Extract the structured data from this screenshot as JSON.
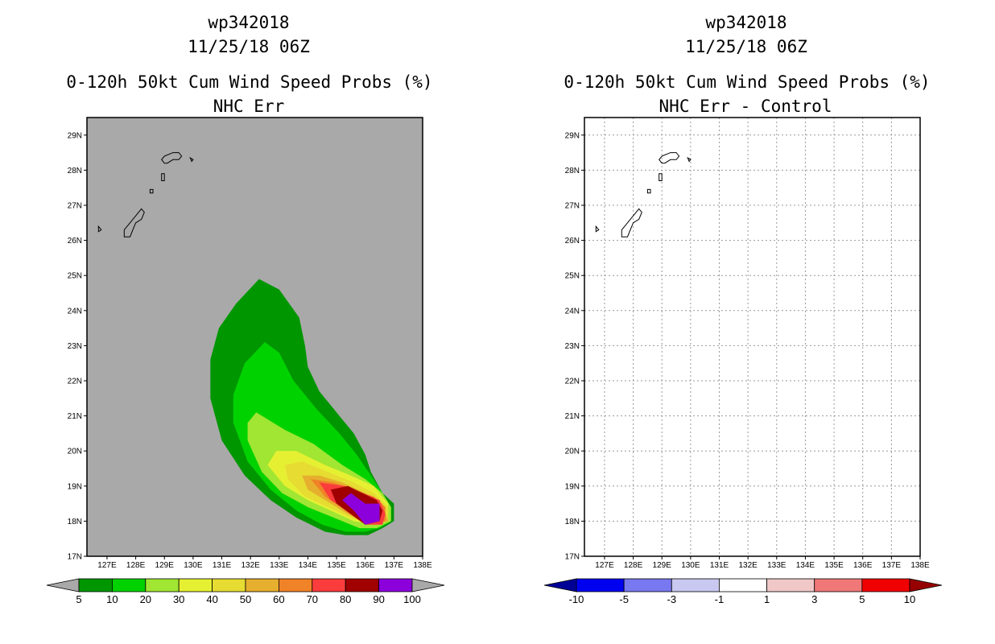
{
  "chart_data": [
    {
      "type": "contour-map",
      "storm_id": "wp342018",
      "datetime": "11/25/18 06Z",
      "title": "0-120h 50kt Cum Wind Speed Probs (%)",
      "subtitle": "NHC Err",
      "background_color": "#a9a9a9",
      "x_ticks": [
        "127E",
        "128E",
        "129E",
        "130E",
        "131E",
        "132E",
        "133E",
        "134E",
        "135E",
        "136E",
        "137E",
        "138E"
      ],
      "y_ticks": [
        "17N",
        "18N",
        "19N",
        "20N",
        "21N",
        "22N",
        "23N",
        "24N",
        "25N",
        "26N",
        "27N",
        "28N",
        "29N"
      ],
      "lon_range": [
        126.3,
        138
      ],
      "lat_range": [
        17,
        29.5
      ],
      "grid": false,
      "colorbar": {
        "labels": [
          "5",
          "10",
          "20",
          "30",
          "40",
          "50",
          "60",
          "70",
          "80",
          "90",
          "100"
        ],
        "colors": [
          "#009600",
          "#00d200",
          "#a0e632",
          "#e6f032",
          "#e6dc32",
          "#e6af2d",
          "#f08228",
          "#fa3c3c",
          "#a00000",
          "#8c00dc"
        ],
        "end_arrows": "both"
      },
      "contours": [
        {
          "level": 5,
          "color": "#009600",
          "points": [
            [
              132.3,
              24.9
            ],
            [
              133.0,
              24.6
            ],
            [
              133.7,
              23.8
            ],
            [
              133.9,
              23.0
            ],
            [
              134.0,
              22.4
            ],
            [
              134.4,
              21.7
            ],
            [
              135.1,
              21.0
            ],
            [
              135.6,
              20.5
            ],
            [
              136.0,
              19.9
            ],
            [
              136.2,
              19.4
            ],
            [
              136.6,
              18.8
            ],
            [
              137.0,
              18.5
            ],
            [
              137.0,
              18.0
            ],
            [
              136.6,
              17.8
            ],
            [
              136.1,
              17.6
            ],
            [
              135.3,
              17.6
            ],
            [
              134.6,
              17.7
            ],
            [
              133.6,
              18.1
            ],
            [
              132.7,
              18.6
            ],
            [
              131.8,
              19.3
            ],
            [
              131.0,
              20.3
            ],
            [
              130.6,
              21.5
            ],
            [
              130.6,
              22.6
            ],
            [
              130.9,
              23.5
            ],
            [
              131.5,
              24.2
            ]
          ]
        },
        {
          "level": 10,
          "color": "#00d200",
          "points": [
            [
              132.5,
              23.1
            ],
            [
              133.0,
              22.8
            ],
            [
              133.5,
              22.0
            ],
            [
              134.3,
              21.2
            ],
            [
              135.1,
              20.5
            ],
            [
              135.7,
              19.9
            ],
            [
              136.2,
              19.3
            ],
            [
              136.6,
              18.8
            ],
            [
              136.9,
              18.4
            ],
            [
              136.9,
              18.0
            ],
            [
              136.5,
              17.8
            ],
            [
              136.0,
              17.7
            ],
            [
              135.3,
              17.7
            ],
            [
              134.5,
              17.9
            ],
            [
              133.6,
              18.3
            ],
            [
              132.7,
              18.9
            ],
            [
              131.9,
              19.7
            ],
            [
              131.4,
              20.8
            ],
            [
              131.4,
              21.6
            ],
            [
              131.8,
              22.5
            ]
          ]
        },
        {
          "level": 20,
          "color": "#a0e632",
          "points": [
            [
              132.2,
              21.1
            ],
            [
              133.2,
              20.6
            ],
            [
              134.2,
              20.2
            ],
            [
              135.2,
              19.6
            ],
            [
              136.0,
              19.2
            ],
            [
              136.6,
              18.8
            ],
            [
              136.9,
              18.4
            ],
            [
              136.9,
              18.0
            ],
            [
              136.4,
              17.8
            ],
            [
              135.8,
              17.8
            ],
            [
              134.9,
              18.1
            ],
            [
              134.0,
              18.4
            ],
            [
              133.1,
              18.8
            ],
            [
              132.4,
              19.4
            ],
            [
              131.9,
              20.3
            ],
            [
              131.9,
              20.8
            ]
          ]
        },
        {
          "level": 30,
          "color": "#e6f032",
          "points": [
            [
              132.9,
              20.0
            ],
            [
              133.6,
              20.0
            ],
            [
              134.6,
              19.6
            ],
            [
              135.5,
              19.3
            ],
            [
              136.3,
              19.0
            ],
            [
              136.8,
              18.5
            ],
            [
              136.8,
              18.0
            ],
            [
              136.3,
              17.9
            ],
            [
              135.6,
              18.0
            ],
            [
              134.8,
              18.3
            ],
            [
              134.0,
              18.6
            ],
            [
              133.2,
              19.0
            ],
            [
              132.6,
              19.6
            ]
          ]
        },
        {
          "level": 40,
          "color": "#e6dc32",
          "points": [
            [
              133.2,
              19.6
            ],
            [
              133.8,
              19.7
            ],
            [
              134.7,
              19.4
            ],
            [
              135.6,
              19.1
            ],
            [
              136.3,
              18.8
            ],
            [
              136.8,
              18.4
            ],
            [
              136.8,
              18.0
            ],
            [
              136.2,
              17.9
            ],
            [
              135.5,
              18.1
            ],
            [
              134.7,
              18.4
            ],
            [
              133.9,
              18.7
            ],
            [
              133.3,
              19.2
            ]
          ]
        },
        {
          "level": 50,
          "color": "#e6af2d",
          "points": [
            [
              133.8,
              19.3
            ],
            [
              134.4,
              19.3
            ],
            [
              135.2,
              19.1
            ],
            [
              136.0,
              18.8
            ],
            [
              136.6,
              18.5
            ],
            [
              136.8,
              18.0
            ],
            [
              136.1,
              17.9
            ],
            [
              135.4,
              18.2
            ],
            [
              134.6,
              18.6
            ],
            [
              134.0,
              18.9
            ]
          ]
        },
        {
          "level": 60,
          "color": "#f08228",
          "points": [
            [
              134.1,
              19.2
            ],
            [
              134.9,
              19.1
            ],
            [
              135.6,
              18.9
            ],
            [
              136.3,
              18.7
            ],
            [
              136.7,
              18.4
            ],
            [
              136.7,
              18.0
            ],
            [
              136.0,
              17.9
            ],
            [
              135.3,
              18.3
            ],
            [
              134.6,
              18.7
            ]
          ]
        },
        {
          "level": 70,
          "color": "#fa3c3c",
          "points": [
            [
              134.4,
              19.1
            ],
            [
              135.3,
              19.0
            ],
            [
              135.9,
              18.8
            ],
            [
              136.5,
              18.6
            ],
            [
              136.7,
              18.2
            ],
            [
              136.6,
              17.9
            ],
            [
              136.0,
              17.9
            ],
            [
              135.4,
              18.3
            ],
            [
              134.8,
              18.6
            ]
          ]
        },
        {
          "level": 80,
          "color": "#a00000",
          "points": [
            [
              134.8,
              18.9
            ],
            [
              135.4,
              19.0
            ],
            [
              135.9,
              18.8
            ],
            [
              136.4,
              18.6
            ],
            [
              136.6,
              18.3
            ],
            [
              136.5,
              18.0
            ],
            [
              136.0,
              17.9
            ],
            [
              135.5,
              18.2
            ],
            [
              135.0,
              18.5
            ]
          ]
        },
        {
          "level": 90,
          "color": "#8c00dc",
          "points": [
            [
              135.5,
              18.8
            ],
            [
              136.0,
              18.5
            ],
            [
              136.5,
              18.5
            ],
            [
              136.5,
              18.0
            ],
            [
              136.0,
              17.9
            ],
            [
              135.6,
              18.3
            ],
            [
              135.2,
              18.6
            ]
          ]
        }
      ]
    },
    {
      "type": "contour-map",
      "storm_id": "wp342018",
      "datetime": "11/25/18 06Z",
      "title": "0-120h 50kt Cum Wind Speed Probs (%)",
      "subtitle": "NHC Err - Control",
      "background_color": "#ffffff",
      "x_ticks": [
        "127E",
        "128E",
        "129E",
        "130E",
        "131E",
        "132E",
        "133E",
        "134E",
        "135E",
        "136E",
        "137E",
        "138E"
      ],
      "y_ticks": [
        "17N",
        "18N",
        "19N",
        "20N",
        "21N",
        "22N",
        "23N",
        "24N",
        "25N",
        "26N",
        "27N",
        "28N",
        "29N"
      ],
      "lon_range": [
        126.3,
        138
      ],
      "lat_range": [
        17,
        29.5
      ],
      "grid": true,
      "colorbar": {
        "labels": [
          "-10",
          "-5",
          "-3",
          "-1",
          "1",
          "3",
          "5",
          "10"
        ],
        "colors": [
          "#0000f0",
          "#7878f0",
          "#c8c8f0",
          "#ffffff",
          "#f0c8c8",
          "#f07878",
          "#f00000"
        ],
        "end_colors": [
          "#000096",
          "#960000"
        ],
        "end_arrows": "both"
      },
      "contours": []
    }
  ],
  "coastlines": [
    [
      [
        129.0,
        28.4
      ],
      [
        129.3,
        28.5
      ],
      [
        129.5,
        28.5
      ],
      [
        129.6,
        28.4
      ],
      [
        129.5,
        28.3
      ],
      [
        129.3,
        28.3
      ],
      [
        129.1,
        28.2
      ],
      [
        129.0,
        28.2
      ],
      [
        128.9,
        28.3
      ]
    ],
    [
      [
        129.9,
        28.35
      ],
      [
        130.0,
        28.3
      ],
      [
        129.95,
        28.25
      ]
    ],
    [
      [
        128.9,
        27.9
      ],
      [
        129.0,
        27.9
      ],
      [
        129.0,
        27.7
      ],
      [
        128.9,
        27.7
      ]
    ],
    [
      [
        128.5,
        27.45
      ],
      [
        128.6,
        27.45
      ],
      [
        128.6,
        27.35
      ],
      [
        128.5,
        27.35
      ]
    ],
    [
      [
        128.2,
        26.9
      ],
      [
        128.3,
        26.8
      ],
      [
        128.2,
        26.6
      ],
      [
        128.0,
        26.5
      ],
      [
        127.9,
        26.3
      ],
      [
        127.8,
        26.1
      ],
      [
        127.6,
        26.1
      ],
      [
        127.6,
        26.3
      ],
      [
        127.8,
        26.5
      ],
      [
        128.0,
        26.7
      ]
    ],
    [
      [
        126.7,
        26.4
      ],
      [
        126.8,
        26.3
      ],
      [
        126.7,
        26.25
      ]
    ]
  ]
}
